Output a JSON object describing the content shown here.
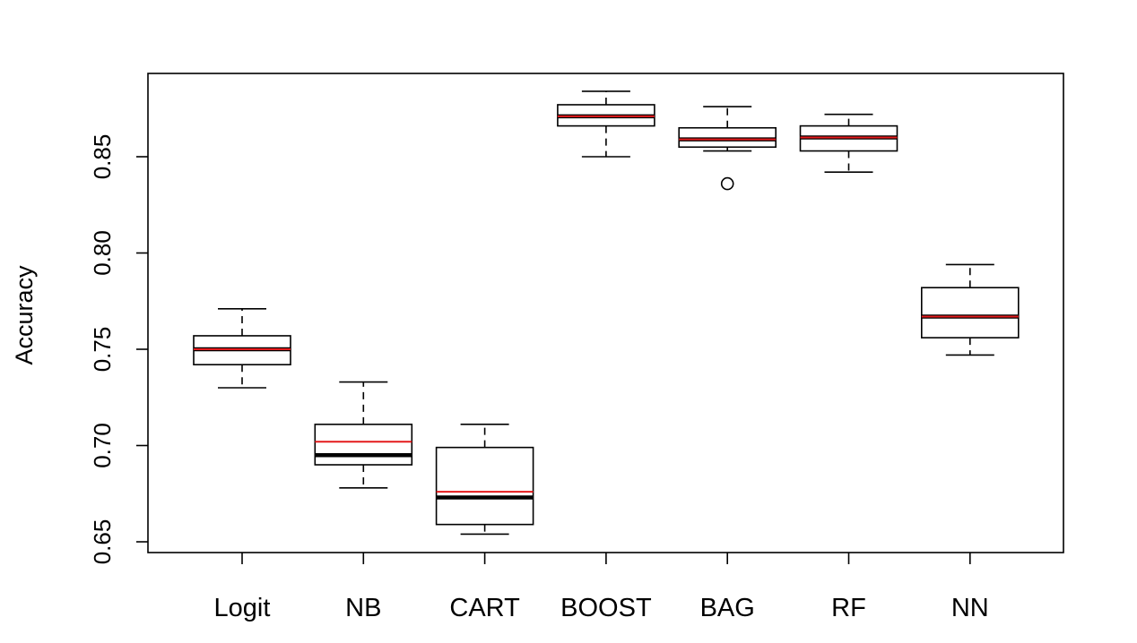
{
  "chart_data": {
    "type": "boxplot",
    "title": "",
    "xlabel": "",
    "ylabel": "Accuracy",
    "ylim": [
      0.645,
      0.895
    ],
    "yticks": [
      0.65,
      0.7,
      0.75,
      0.8,
      0.85
    ],
    "ytick_labels": [
      "0.65",
      "0.70",
      "0.75",
      "0.80",
      "0.85"
    ],
    "grid": false,
    "legend": "none",
    "colors": {
      "box": "#000000",
      "median": "#000000",
      "mean": "#e41a1c"
    },
    "categories": [
      "Logit",
      "NB",
      "CART",
      "BOOST",
      "BAG",
      "RF",
      "NN"
    ],
    "boxes": [
      {
        "label": "Logit",
        "min": 0.73,
        "q1": 0.742,
        "median": 0.75,
        "q3": 0.757,
        "max": 0.771,
        "mean": 0.75,
        "outliers": []
      },
      {
        "label": "NB",
        "min": 0.678,
        "q1": 0.69,
        "median": 0.695,
        "q3": 0.711,
        "max": 0.733,
        "mean": 0.702,
        "outliers": []
      },
      {
        "label": "CART",
        "min": 0.654,
        "q1": 0.659,
        "median": 0.673,
        "q3": 0.699,
        "max": 0.711,
        "mean": 0.676,
        "outliers": []
      },
      {
        "label": "BOOST",
        "min": 0.85,
        "q1": 0.866,
        "median": 0.871,
        "q3": 0.877,
        "max": 0.884,
        "mean": 0.871,
        "outliers": []
      },
      {
        "label": "BAG",
        "min": 0.853,
        "q1": 0.855,
        "median": 0.859,
        "q3": 0.865,
        "max": 0.876,
        "mean": 0.859,
        "outliers": [
          0.836
        ]
      },
      {
        "label": "RF",
        "min": 0.842,
        "q1": 0.853,
        "median": 0.86,
        "q3": 0.866,
        "max": 0.872,
        "mean": 0.86,
        "outliers": []
      },
      {
        "label": "NN",
        "min": 0.747,
        "q1": 0.756,
        "median": 0.767,
        "q3": 0.782,
        "max": 0.794,
        "mean": 0.767,
        "outliers": []
      }
    ]
  }
}
